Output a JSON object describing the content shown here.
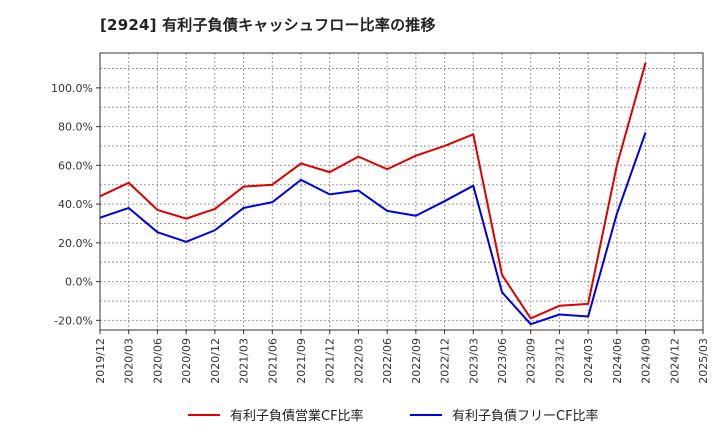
{
  "chart_data": {
    "type": "line",
    "title": "[2924]  有利子負債キャッシュフロー比率の推移",
    "x": [
      "2019/12",
      "2020/03",
      "2020/06",
      "2020/09",
      "2020/12",
      "2021/03",
      "2021/06",
      "2021/09",
      "2021/12",
      "2022/03",
      "2022/06",
      "2022/09",
      "2022/12",
      "2023/03",
      "2023/06",
      "2023/09",
      "2023/12",
      "2024/03",
      "2024/06",
      "2024/09",
      "2024/12",
      "2025/03"
    ],
    "ylim": [
      -25,
      118
    ],
    "yticks": [
      "-20.0%",
      "0.0%",
      "20.0%",
      "40.0%",
      "60.0%",
      "80.0%",
      "100.0%"
    ],
    "ytick_values": [
      -20,
      0,
      20,
      40,
      60,
      80,
      100
    ],
    "grid": true,
    "legend_position": "bottom",
    "series": [
      {
        "name": "有利子負債営業CF比率",
        "color": "#dd0000",
        "values": [
          44,
          51,
          37,
          32.5,
          37.5,
          49,
          50,
          61,
          56.5,
          64.5,
          58,
          65,
          70,
          76,
          3.5,
          -19,
          -12.5,
          -11.5,
          60,
          113,
          null,
          null
        ]
      },
      {
        "name": "有利子負債フリーCF比率",
        "color": "#0000dd",
        "values": [
          33,
          38,
          25.5,
          20.5,
          26.5,
          38,
          41,
          52.5,
          45,
          47,
          36.5,
          34,
          41.5,
          49.5,
          -5.5,
          -22,
          -17,
          -18,
          35,
          77,
          null,
          null
        ]
      }
    ]
  }
}
